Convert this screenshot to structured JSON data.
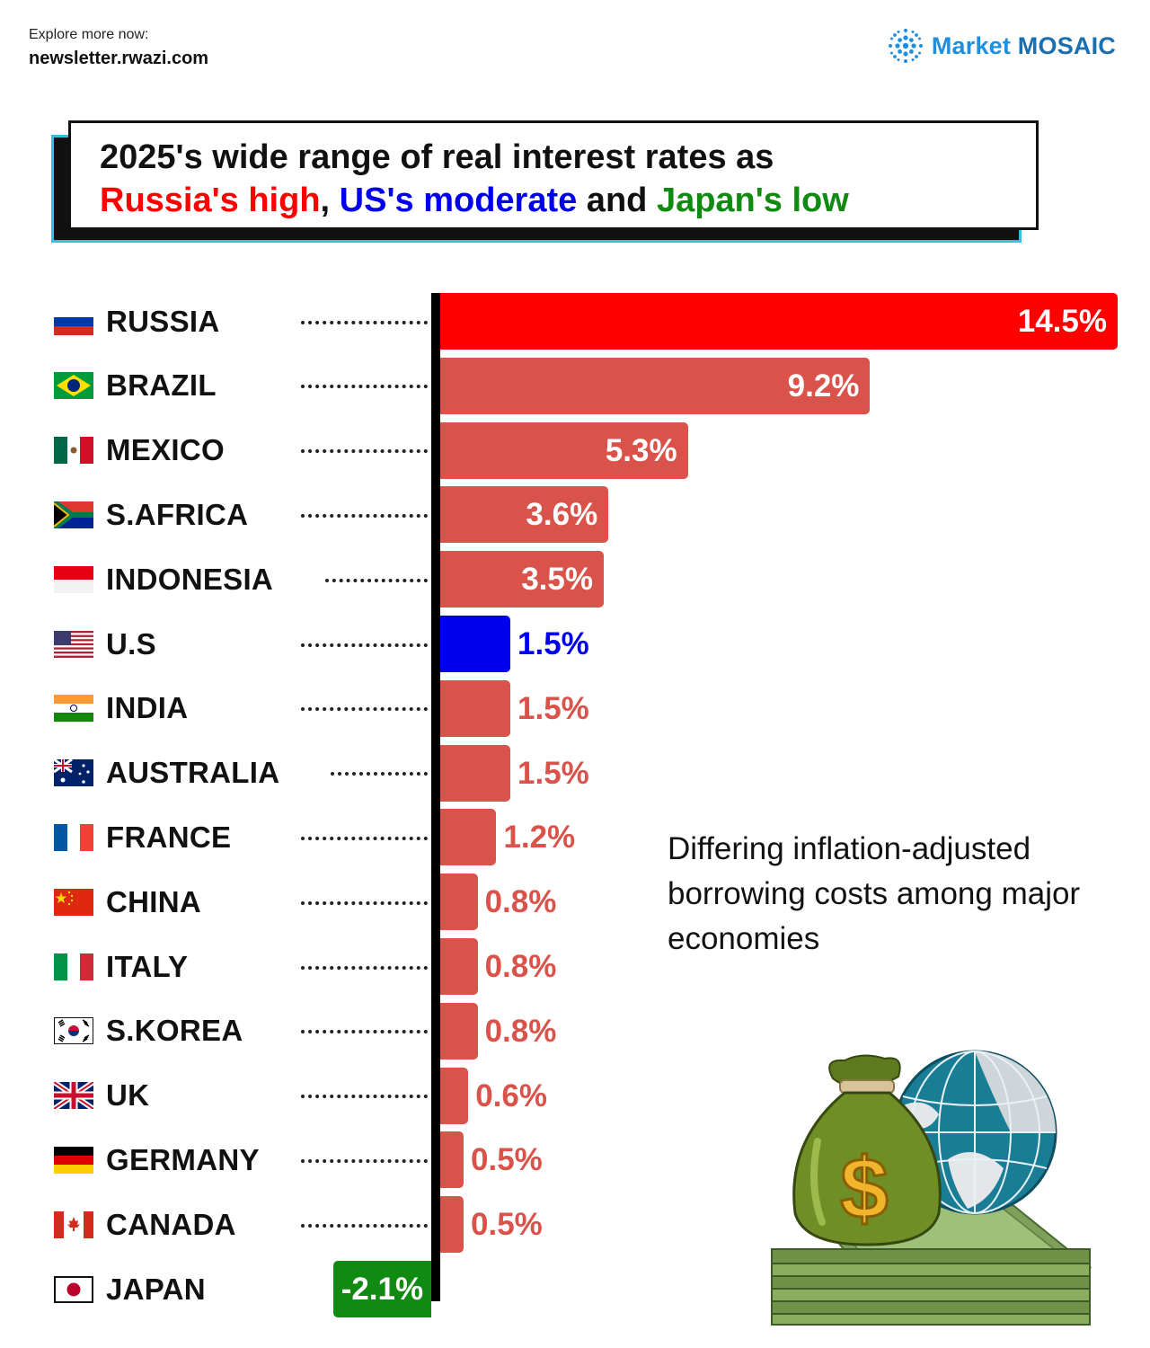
{
  "header": {
    "explore_text": "Explore more now:",
    "url_text": "newsletter.rwazi.com",
    "logo_word1": "Market",
    "logo_word2": "MOSAIC"
  },
  "title": {
    "line1": "2025's wide range of real interest rates as",
    "part_red": "Russia's high",
    "sep": ", ",
    "part_blue": "US's moderate",
    "and_text": " and ",
    "part_green": "Japan's low"
  },
  "side_note": "Differing inflation-adjusted borrowing costs among major economies",
  "colors": {
    "russia_bar": "#ff0000",
    "default_bar": "#d9534a",
    "us_bar": "#0000ee",
    "japan_bar": "#118a11"
  },
  "chart_data": {
    "type": "bar",
    "orientation": "horizontal",
    "unit": "%",
    "categories": [
      "RUSSIA",
      "BRAZIL",
      "MEXICO",
      "S.AFRICA",
      "INDONESIA",
      "U.S",
      "INDIA",
      "AUSTRALIA",
      "FRANCE",
      "CHINA",
      "ITALY",
      "S.KOREA",
      "UK",
      "GERMANY",
      "CANADA",
      "JAPAN"
    ],
    "values": [
      14.5,
      9.2,
      5.3,
      3.6,
      3.5,
      1.5,
      1.5,
      1.5,
      1.2,
      0.8,
      0.8,
      0.8,
      0.6,
      0.5,
      0.5,
      -2.1
    ],
    "labels": [
      "14.5%",
      "9.2%",
      "5.3%",
      "3.6%",
      "3.5%",
      "1.5%",
      "1.5%",
      "1.5%",
      "1.2%",
      "0.8%",
      "0.8%",
      "0.8%",
      "0.6%",
      "0.5%",
      "0.5%",
      "-2.1%"
    ],
    "bar_colors": [
      "#ff0000",
      "#d9534a",
      "#d9534a",
      "#d9534a",
      "#d9534a",
      "#0000ee",
      "#d9534a",
      "#d9534a",
      "#d9534a",
      "#d9534a",
      "#d9534a",
      "#d9534a",
      "#d9534a",
      "#d9534a",
      "#d9534a",
      "#118a11"
    ],
    "flag_icons": [
      "russia-flag-icon",
      "brazil-flag-icon",
      "mexico-flag-icon",
      "south-africa-flag-icon",
      "indonesia-flag-icon",
      "us-flag-icon",
      "india-flag-icon",
      "australia-flag-icon",
      "france-flag-icon",
      "china-flag-icon",
      "italy-flag-icon",
      "south-korea-flag-icon",
      "uk-flag-icon",
      "germany-flag-icon",
      "canada-flag-icon",
      "japan-flag-icon"
    ],
    "xlim": [
      -2.1,
      14.5
    ],
    "grid": false,
    "legend": "none"
  }
}
